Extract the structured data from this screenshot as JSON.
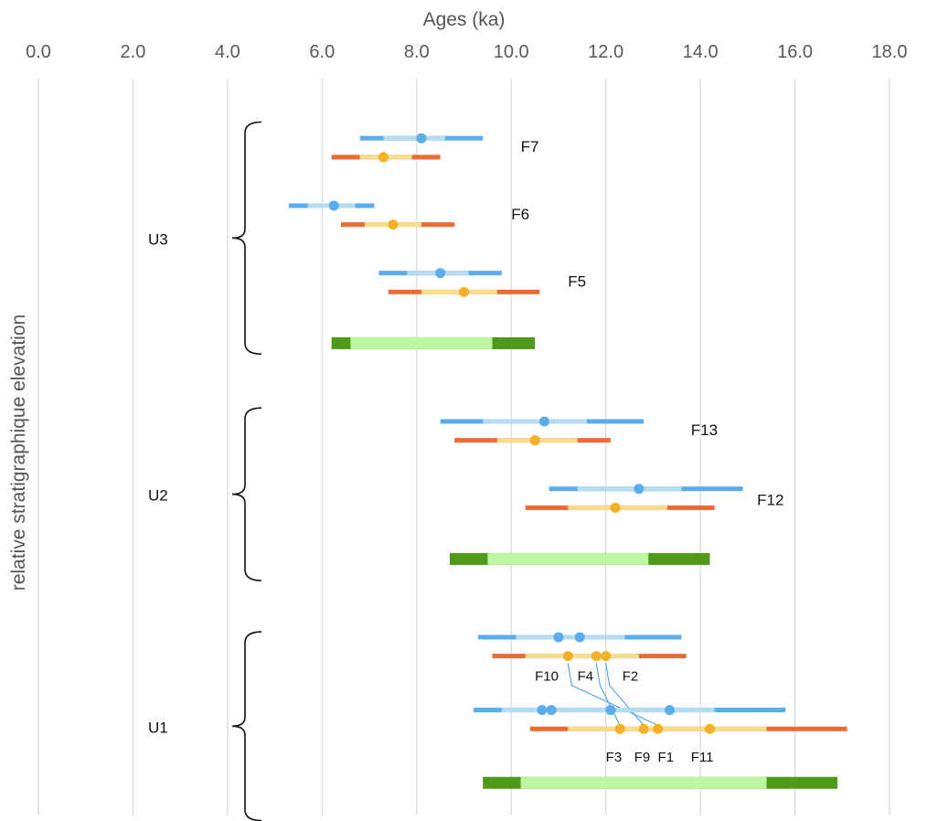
{
  "colors": {
    "blue_dark": "#5aacea",
    "blue_light": "#b4dcf2",
    "orange_dark": "#ee6a35",
    "orange_light": "#f9dd8f",
    "orange_dot": "#f5b125",
    "green_dark": "#4e9a18",
    "green_light": "#bdf6a0",
    "grid": "#d9d9d9",
    "brace": "#111111",
    "leader": "#4aa3df"
  },
  "chart_data": {
    "type": "range",
    "xlabel": "Ages (ka)",
    "ylabel": "relative stratigraphique elevation",
    "xlim": [
      0,
      18
    ],
    "x_ticks": [
      "0.0",
      "2.0",
      "4.0",
      "6.0",
      "8.0",
      "10.0",
      "12.0",
      "14.0",
      "16.0",
      "18.0"
    ],
    "grid": "vertical",
    "x_axis_position": "top",
    "units": [
      {
        "label": "U3",
        "brace_top": 1.0,
        "brace_bottom": 9.6
      },
      {
        "label": "U2",
        "brace_top": 11.6,
        "brace_bottom": 18.0
      },
      {
        "label": "U1",
        "brace_top": 19.9,
        "brace_bottom": 26.9
      }
    ],
    "series": [
      {
        "sample": "F7",
        "kind": "blue",
        "row": 1.6,
        "outer": [
          6.8,
          9.4
        ],
        "inner": [
          7.3,
          8.6
        ],
        "points": [
          8.1
        ]
      },
      {
        "sample": "F7",
        "kind": "orange",
        "row": 2.3,
        "outer": [
          6.2,
          8.5
        ],
        "inner": [
          6.8,
          7.9
        ],
        "points": [
          7.3
        ]
      },
      {
        "sample": "F6",
        "kind": "blue",
        "row": 4.1,
        "outer": [
          5.3,
          7.1
        ],
        "inner": [
          5.7,
          6.7
        ],
        "points": [
          6.25
        ]
      },
      {
        "sample": "F6",
        "kind": "orange",
        "row": 4.8,
        "outer": [
          6.4,
          8.8
        ],
        "inner": [
          6.9,
          8.1
        ],
        "points": [
          7.5
        ]
      },
      {
        "sample": "F5",
        "kind": "blue",
        "row": 6.6,
        "outer": [
          7.2,
          9.8
        ],
        "inner": [
          7.8,
          9.1
        ],
        "points": [
          8.5
        ]
      },
      {
        "sample": "F5",
        "kind": "orange",
        "row": 7.3,
        "outer": [
          7.4,
          10.6
        ],
        "inner": [
          8.1,
          9.7
        ],
        "points": [
          9.0
        ]
      },
      {
        "sample": "U3",
        "kind": "green",
        "row": 9.2,
        "outer": [
          6.2,
          10.5
        ],
        "inner": [
          6.6,
          9.6
        ],
        "points": []
      },
      {
        "sample": "F13",
        "kind": "blue",
        "row": 12.1,
        "outer": [
          8.5,
          12.8
        ],
        "inner": [
          9.4,
          11.6
        ],
        "points": [
          10.7
        ]
      },
      {
        "sample": "F13",
        "kind": "orange",
        "row": 12.8,
        "outer": [
          8.8,
          12.1
        ],
        "inner": [
          9.7,
          11.4
        ],
        "points": [
          10.5
        ]
      },
      {
        "sample": "F12",
        "kind": "blue",
        "row": 14.6,
        "outer": [
          10.8,
          14.9
        ],
        "inner": [
          11.4,
          13.6
        ],
        "points": [
          12.7
        ]
      },
      {
        "sample": "F12",
        "kind": "orange",
        "row": 15.3,
        "outer": [
          10.3,
          14.3
        ],
        "inner": [
          11.2,
          13.3
        ],
        "points": [
          12.2
        ]
      },
      {
        "sample": "U2",
        "kind": "green",
        "row": 17.2,
        "outer": [
          8.7,
          14.2
        ],
        "inner": [
          9.5,
          12.9
        ],
        "points": []
      },
      {
        "sample": "F10 F4 F2",
        "kind": "blue",
        "row": 20.1,
        "outer": [
          9.3,
          13.6
        ],
        "inner": [
          10.1,
          12.4
        ],
        "points": [
          11.0,
          11.45
        ]
      },
      {
        "sample": "F10 F4 F2",
        "kind": "orange",
        "row": 20.8,
        "outer": [
          9.6,
          13.7
        ],
        "inner": [
          10.3,
          12.7
        ],
        "points": [
          11.2,
          11.8,
          12.0
        ]
      },
      {
        "sample": "F3 F9 F1 F11",
        "kind": "blue",
        "row": 22.8,
        "outer": [
          9.2,
          15.8
        ],
        "inner": [
          9.8,
          14.3
        ],
        "points": [
          10.65,
          10.85,
          12.1,
          13.35
        ]
      },
      {
        "sample": "F3 F9 F1 F11",
        "kind": "orange",
        "row": 23.5,
        "outer": [
          10.4,
          17.1
        ],
        "inner": [
          11.2,
          15.4
        ],
        "points": [
          12.3,
          12.8,
          13.1,
          14.2
        ]
      },
      {
        "sample": "U1",
        "kind": "green",
        "row": 25.5,
        "outer": [
          9.4,
          16.9
        ],
        "inner": [
          10.2,
          15.4
        ],
        "points": []
      }
    ],
    "sample_labels": [
      {
        "text": "F7",
        "x": 10.2,
        "row": 1.9,
        "size": "large"
      },
      {
        "text": "F6",
        "x": 10.0,
        "row": 4.4,
        "size": "large"
      },
      {
        "text": "F5",
        "x": 11.2,
        "row": 6.9,
        "size": "large"
      },
      {
        "text": "F13",
        "x": 13.8,
        "row": 12.4,
        "size": "large"
      },
      {
        "text": "F12",
        "x": 15.2,
        "row": 15.0,
        "size": "large"
      },
      {
        "text": "F10",
        "x": 10.5,
        "row": 21.5,
        "size": "small"
      },
      {
        "text": "F4",
        "x": 11.4,
        "row": 21.5,
        "size": "small"
      },
      {
        "text": "F2",
        "x": 12.35,
        "row": 21.5,
        "size": "small"
      },
      {
        "text": "F3",
        "x": 12.0,
        "row": 24.5,
        "size": "small"
      },
      {
        "text": "F9",
        "x": 12.6,
        "row": 24.5,
        "size": "small"
      },
      {
        "text": "F1",
        "x": 13.1,
        "row": 24.5,
        "size": "small"
      },
      {
        "text": "F11",
        "x": 13.8,
        "row": 24.5,
        "size": "small"
      }
    ],
    "leader_lines": [
      {
        "from_x": 11.2,
        "from_row": 20.8,
        "to_x": 13.1,
        "to_row": 23.5
      },
      {
        "from_x": 11.8,
        "from_row": 20.8,
        "to_x": 12.3,
        "to_row": 23.5
      },
      {
        "from_x": 12.0,
        "from_row": 20.8,
        "to_x": 12.8,
        "to_row": 23.5
      }
    ]
  }
}
